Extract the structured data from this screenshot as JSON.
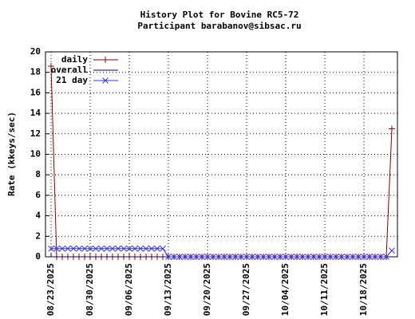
{
  "chart_data": {
    "type": "line",
    "title": "History Plot for Bovine RC5-72",
    "subtitle": "Participant barabanov@sibsac.ru",
    "y_label": "Rate (kkeys/sec)",
    "x": [
      "2025-08-23",
      "2025-08-24",
      "2025-08-25",
      "2025-08-26",
      "2025-08-27",
      "2025-08-28",
      "2025-08-29",
      "2025-08-30",
      "2025-08-31",
      "2025-09-01",
      "2025-09-02",
      "2025-09-03",
      "2025-09-04",
      "2025-09-05",
      "2025-09-06",
      "2025-09-07",
      "2025-09-08",
      "2025-09-09",
      "2025-09-10",
      "2025-09-11",
      "2025-09-12",
      "2025-09-13",
      "2025-09-14",
      "2025-09-15",
      "2025-09-16",
      "2025-09-17",
      "2025-09-18",
      "2025-09-19",
      "2025-09-20",
      "2025-09-21",
      "2025-09-22",
      "2025-09-23",
      "2025-09-24",
      "2025-09-25",
      "2025-09-26",
      "2025-09-27",
      "2025-09-28",
      "2025-09-29",
      "2025-09-30",
      "2025-10-01",
      "2025-10-02",
      "2025-10-03",
      "2025-10-04",
      "2025-10-05",
      "2025-10-06",
      "2025-10-07",
      "2025-10-08",
      "2025-10-09",
      "2025-10-10",
      "2025-10-11",
      "2025-10-12",
      "2025-10-13",
      "2025-10-14",
      "2025-10-15",
      "2025-10-16",
      "2025-10-17",
      "2025-10-18",
      "2025-10-19",
      "2025-10-20",
      "2025-10-21",
      "2025-10-22",
      "2025-10-23"
    ],
    "series": [
      {
        "name": "daily",
        "color": "#8b0000",
        "marker": "plus",
        "values": [
          18.6,
          0,
          0,
          0,
          0,
          0,
          0,
          0,
          0,
          0,
          0,
          0,
          0,
          0,
          0,
          0,
          0,
          0,
          0,
          0,
          0,
          0,
          0,
          0,
          0,
          0,
          0,
          0,
          0,
          0,
          0,
          0,
          0,
          0,
          0,
          0,
          0,
          0,
          0,
          0,
          0,
          0,
          0,
          0,
          0,
          0,
          0,
          0,
          0,
          0,
          0,
          0,
          0,
          0,
          0,
          0,
          0,
          0,
          0,
          0,
          0,
          12.5
        ]
      },
      {
        "name": "overall",
        "color": "#000066",
        "values": [
          0,
          0,
          0,
          0,
          0,
          0,
          0,
          0,
          0,
          0,
          0,
          0,
          0,
          0,
          0,
          0,
          0,
          0,
          0,
          0,
          0,
          0,
          0,
          0,
          0,
          0,
          0,
          0,
          0,
          0,
          0,
          0,
          0,
          0,
          0,
          0,
          0,
          0,
          0,
          0,
          0,
          0,
          0,
          0,
          0,
          0,
          0,
          0,
          0,
          0,
          0,
          0,
          0,
          0,
          0,
          0,
          0,
          0,
          0,
          0,
          0,
          0
        ]
      },
      {
        "name": "21 day",
        "color": "#3333ee",
        "marker": "cross",
        "values": [
          0.8,
          0.8,
          0.8,
          0.8,
          0.8,
          0.8,
          0.8,
          0.8,
          0.8,
          0.8,
          0.8,
          0.8,
          0.8,
          0.8,
          0.8,
          0.8,
          0.8,
          0.8,
          0.8,
          0.8,
          0.8,
          0,
          0,
          0,
          0,
          0,
          0,
          0,
          0,
          0,
          0,
          0,
          0,
          0,
          0,
          0,
          0,
          0,
          0,
          0,
          0,
          0,
          0,
          0,
          0,
          0,
          0,
          0,
          0,
          0,
          0,
          0,
          0,
          0,
          0,
          0,
          0,
          0,
          0,
          0,
          0,
          0.6
        ]
      }
    ],
    "xlim": [
      "2025-08-22",
      "2025-10-24"
    ],
    "xticks": [
      {
        "value": "2025-08-23",
        "label": "08/23/2025"
      },
      {
        "value": "2025-08-30",
        "label": "08/30/2025"
      },
      {
        "value": "2025-09-06",
        "label": "09/06/2025"
      },
      {
        "value": "2025-09-13",
        "label": "09/13/2025"
      },
      {
        "value": "2025-09-20",
        "label": "09/20/2025"
      },
      {
        "value": "2025-09-27",
        "label": "09/27/2025"
      },
      {
        "value": "2025-10-04",
        "label": "10/04/2025"
      },
      {
        "value": "2025-10-11",
        "label": "10/11/2025"
      },
      {
        "value": "2025-10-18",
        "label": "10/18/2025"
      }
    ],
    "ylim": [
      0,
      20
    ],
    "yticks": [
      0,
      2,
      4,
      6,
      8,
      10,
      12,
      14,
      16,
      18,
      20
    ],
    "grid": true,
    "legend": "top-left"
  }
}
